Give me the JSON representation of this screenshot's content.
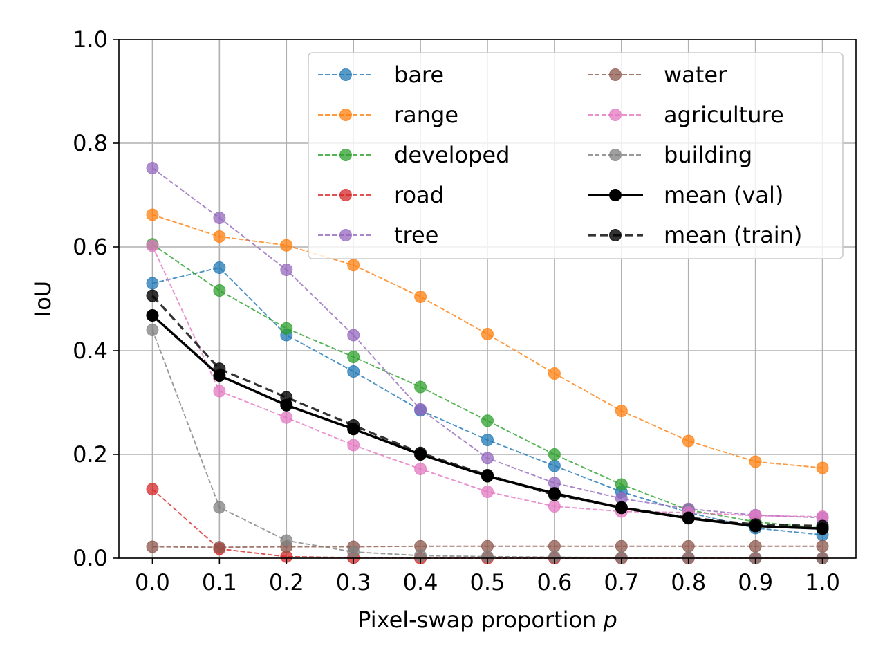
{
  "chart_data": {
    "type": "line",
    "title": "",
    "xlabel": "Pixel-swap proportion",
    "xlabel_var": "p",
    "ylabel": "IoU",
    "x": [
      0.0,
      0.1,
      0.2,
      0.3,
      0.4,
      0.5,
      0.6,
      0.7,
      0.8,
      0.9,
      1.0
    ],
    "x_tick_labels": [
      "0.0",
      "0.1",
      "0.2",
      "0.3",
      "0.4",
      "0.5",
      "0.6",
      "0.7",
      "0.8",
      "0.9",
      "1.0"
    ],
    "y_tick_labels": [
      "0.0",
      "0.2",
      "0.4",
      "0.6",
      "0.8",
      "1.0"
    ],
    "y_ticks": [
      0.0,
      0.2,
      0.4,
      0.6,
      0.8,
      1.0
    ],
    "xlim": [
      -0.05,
      1.05
    ],
    "ylim": [
      0.0,
      1.0
    ],
    "grid": true,
    "legend_placement": "top-right",
    "series": [
      {
        "name": "bare",
        "color": "#1f77b4",
        "style": "dashed",
        "values": [
          0.53,
          0.56,
          0.43,
          0.36,
          0.285,
          0.228,
          0.178,
          0.128,
          0.088,
          0.058,
          0.045
        ]
      },
      {
        "name": "range",
        "color": "#ff7f0e",
        "style": "dashed",
        "values": [
          0.662,
          0.62,
          0.603,
          0.565,
          0.504,
          0.432,
          0.356,
          0.284,
          0.226,
          0.186,
          0.174
        ]
      },
      {
        "name": "developed",
        "color": "#2ca02c",
        "style": "dashed",
        "values": [
          0.605,
          0.516,
          0.443,
          0.388,
          0.33,
          0.265,
          0.2,
          0.142,
          0.093,
          0.07,
          0.058
        ]
      },
      {
        "name": "road",
        "color": "#d62728",
        "style": "dashed",
        "values": [
          0.133,
          0.018,
          0.003,
          0.001,
          0.0,
          0.0,
          0.0,
          0.0,
          0.0,
          0.0,
          0.0
        ]
      },
      {
        "name": "tree",
        "color": "#9467bd",
        "style": "dashed",
        "values": [
          0.752,
          0.656,
          0.556,
          0.43,
          0.287,
          0.193,
          0.145,
          0.115,
          0.095,
          0.083,
          0.078
        ]
      },
      {
        "name": "water",
        "color": "#8c564b",
        "style": "dashed",
        "values": [
          0.022,
          0.021,
          0.022,
          0.022,
          0.023,
          0.023,
          0.023,
          0.023,
          0.023,
          0.023,
          0.023
        ]
      },
      {
        "name": "agriculture",
        "color": "#e377c2",
        "style": "dashed",
        "values": [
          0.602,
          0.322,
          0.271,
          0.218,
          0.172,
          0.128,
          0.1,
          0.09,
          0.088,
          0.082,
          0.08
        ]
      },
      {
        "name": "building",
        "color": "#7f7f7f",
        "style": "dashed",
        "values": [
          0.44,
          0.098,
          0.034,
          0.012,
          0.005,
          0.003,
          0.002,
          0.001,
          0.001,
          0.0,
          0.0
        ]
      },
      {
        "name": "mean (val)",
        "color": "#000000",
        "style": "solid",
        "values": [
          0.468,
          0.352,
          0.295,
          0.249,
          0.2,
          0.158,
          0.125,
          0.097,
          0.077,
          0.062,
          0.057
        ]
      },
      {
        "name": "mean (train)",
        "color": "#000000",
        "style": "dashed-bold",
        "values": [
          0.506,
          0.365,
          0.31,
          0.256,
          0.203,
          0.16,
          0.122,
          0.098,
          0.078,
          0.065,
          0.062
        ]
      }
    ]
  }
}
